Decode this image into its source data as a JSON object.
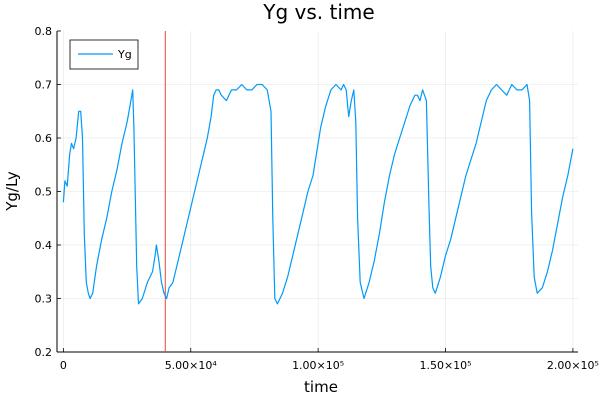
{
  "chart_data": {
    "type": "line",
    "title": "Yg vs. time",
    "xlabel": "time",
    "ylabel": "Yg/Ly",
    "xlim": [
      -2500,
      202000
    ],
    "ylim": [
      0.2,
      0.8
    ],
    "x_ticks": [
      {
        "value": 0,
        "label": "0"
      },
      {
        "value": 50000,
        "label": "5.00×10⁴"
      },
      {
        "value": 100000,
        "label": "1.00×10⁵"
      },
      {
        "value": 150000,
        "label": "1.50×10⁵"
      },
      {
        "value": 200000,
        "label": "2.00×10⁵"
      }
    ],
    "y_ticks": [
      {
        "value": 0.2,
        "label": "0.2"
      },
      {
        "value": 0.3,
        "label": "0.3"
      },
      {
        "value": 0.4,
        "label": "0.4"
      },
      {
        "value": 0.5,
        "label": "0.5"
      },
      {
        "value": 0.6,
        "label": "0.6"
      },
      {
        "value": 0.7,
        "label": "0.7"
      },
      {
        "value": 0.8,
        "label": "0.8"
      }
    ],
    "grid": true,
    "legend": {
      "position": "top-left"
    },
    "marker_line": {
      "x": 40000,
      "color": "#e8463a"
    },
    "series": [
      {
        "name": "Yg",
        "color": "#009af9",
        "x": [
          0,
          600,
          1500,
          2500,
          3200,
          4000,
          5000,
          6000,
          6800,
          7500,
          8200,
          9000,
          9800,
          10500,
          11500,
          13000,
          15000,
          17000,
          19000,
          21000,
          23000,
          25000,
          26500,
          27200,
          27700,
          28200,
          28800,
          29500,
          31000,
          33000,
          35000,
          36000,
          36500,
          37500,
          38500,
          39500,
          40500,
          41500,
          43000,
          46000,
          49000,
          51000,
          53000,
          55000,
          56500,
          58000,
          59000,
          60000,
          61000,
          62000,
          64000,
          66000,
          68000,
          70000,
          72000,
          74000,
          76000,
          78000,
          80000,
          81500,
          82200,
          83000,
          84000,
          86000,
          88000,
          90000,
          92000,
          94000,
          96000,
          98000,
          100000,
          101000,
          103000,
          105000,
          107000,
          109000,
          110000,
          111000,
          112000,
          113000,
          114000,
          114800,
          115500,
          116500,
          118000,
          120000,
          122000,
          124000,
          126000,
          128000,
          130000,
          132000,
          134000,
          136000,
          138000,
          139000,
          140000,
          141000,
          142500,
          143500,
          144200,
          145000,
          146000,
          148000,
          150000,
          152000,
          154000,
          156000,
          158000,
          160000,
          162000,
          164000,
          166000,
          168000,
          170000,
          172000,
          174000,
          176000,
          178000,
          180000,
          182000,
          183000,
          183800,
          184800,
          186000,
          188000,
          190000,
          192000,
          194000,
          196000,
          198000,
          200000
        ],
        "y": [
          0.48,
          0.52,
          0.51,
          0.57,
          0.59,
          0.58,
          0.6,
          0.65,
          0.65,
          0.6,
          0.42,
          0.33,
          0.31,
          0.3,
          0.31,
          0.36,
          0.41,
          0.45,
          0.5,
          0.54,
          0.59,
          0.63,
          0.67,
          0.69,
          0.62,
          0.5,
          0.36,
          0.29,
          0.3,
          0.33,
          0.35,
          0.38,
          0.4,
          0.37,
          0.33,
          0.31,
          0.3,
          0.32,
          0.33,
          0.39,
          0.45,
          0.49,
          0.53,
          0.57,
          0.6,
          0.64,
          0.68,
          0.69,
          0.69,
          0.68,
          0.67,
          0.69,
          0.69,
          0.7,
          0.69,
          0.69,
          0.7,
          0.7,
          0.69,
          0.65,
          0.45,
          0.3,
          0.29,
          0.31,
          0.34,
          0.38,
          0.42,
          0.46,
          0.5,
          0.53,
          0.59,
          0.62,
          0.66,
          0.69,
          0.7,
          0.69,
          0.7,
          0.69,
          0.64,
          0.67,
          0.69,
          0.63,
          0.45,
          0.33,
          0.3,
          0.33,
          0.37,
          0.42,
          0.48,
          0.53,
          0.57,
          0.6,
          0.63,
          0.66,
          0.68,
          0.68,
          0.67,
          0.69,
          0.67,
          0.47,
          0.36,
          0.32,
          0.31,
          0.34,
          0.38,
          0.41,
          0.45,
          0.49,
          0.53,
          0.56,
          0.59,
          0.63,
          0.67,
          0.69,
          0.7,
          0.69,
          0.68,
          0.7,
          0.69,
          0.69,
          0.7,
          0.67,
          0.46,
          0.34,
          0.31,
          0.32,
          0.35,
          0.39,
          0.44,
          0.49,
          0.53,
          0.58
        ]
      }
    ]
  }
}
